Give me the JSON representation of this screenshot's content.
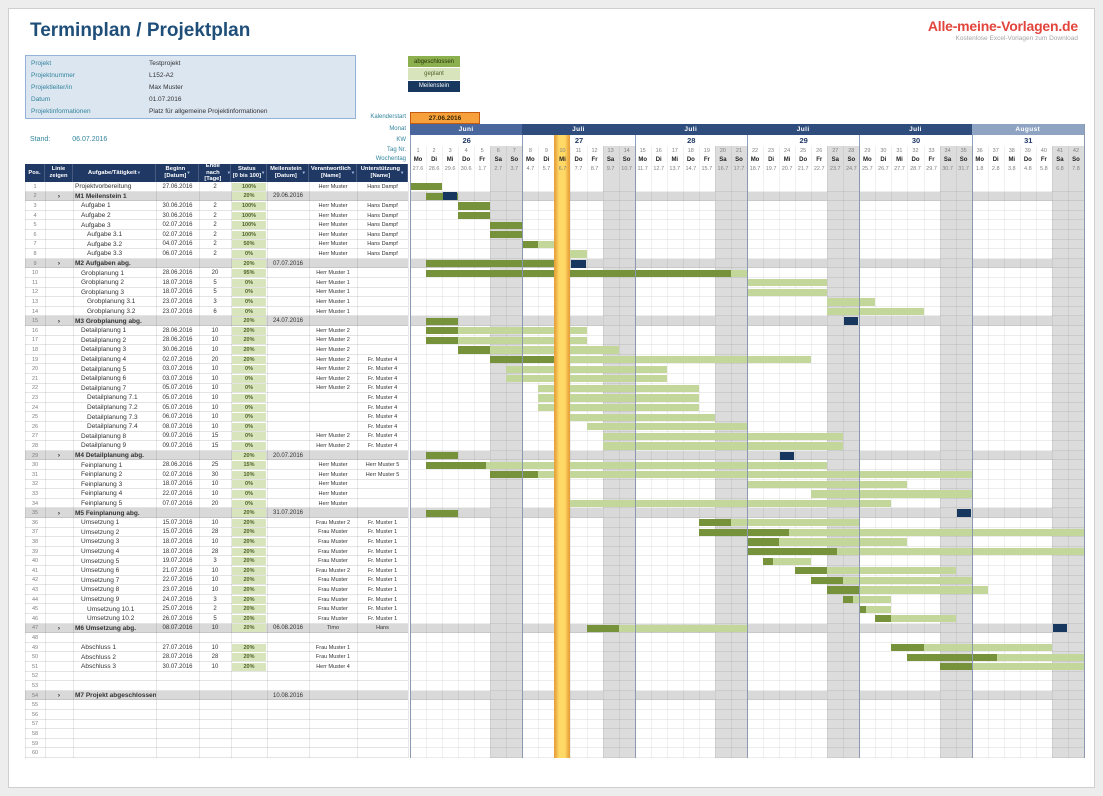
{
  "page": {
    "title": "Terminplan / Projektplan",
    "stand_label": "Stand:",
    "stand_value": "06.07.2016"
  },
  "logo": {
    "brand": "Alle-meine-Vorlagen.de",
    "tagline": "Kostenlose Excel-Vorlagen zum Download"
  },
  "project_info": {
    "rows": [
      {
        "label": "Projekt",
        "value": "Testprojekt"
      },
      {
        "label": "Projektnummer",
        "value": "L152-A2"
      },
      {
        "label": "Projektleiter/in",
        "value": "Max Muster"
      },
      {
        "label": "Datum",
        "value": "01.07.2016"
      },
      {
        "label": "Projektinformationen",
        "value": "Platz für allgemeine Projektinformationen"
      }
    ]
  },
  "legend": [
    {
      "label": "abgeschlossen",
      "color": "#8DB04E",
      "text": "#25330A"
    },
    {
      "label": "geplant",
      "color": "#D7E4BC",
      "text": "#4F6228"
    },
    {
      "label": "Meilenstein",
      "color": "#17375E",
      "text": "#FFFFFF"
    }
  ],
  "calendar": {
    "start_label": "Kalenderstart",
    "start_value": "27.06.2016",
    "row_labels": {
      "monat": "Monat",
      "kw": "KW",
      "tag": "Tag Nr.",
      "wochentag": "Wochentag"
    },
    "weeks": [
      {
        "month": "Juni",
        "kw": "26",
        "color": "#4A679D"
      },
      {
        "month": "Juli",
        "kw": "27",
        "color": "#2E4C7C"
      },
      {
        "month": "Juli",
        "kw": "28",
        "color": "#2E4C7C"
      },
      {
        "month": "Juli",
        "kw": "29",
        "color": "#2E4C7C"
      },
      {
        "month": "Juli",
        "kw": "30",
        "color": "#2E4C7C"
      },
      {
        "month": "August",
        "kw": "31",
        "color": "#8FA3C2"
      }
    ],
    "weekdays": [
      "Mo",
      "Di",
      "Mi",
      "Do",
      "Fr",
      "Sa",
      "So"
    ],
    "day_numbers": [
      1,
      2,
      3,
      4,
      5,
      6,
      7,
      8,
      9,
      10,
      11,
      12,
      13,
      14,
      15,
      16,
      17,
      18,
      19,
      20,
      21,
      22,
      23,
      24,
      25,
      26,
      27,
      28,
      29,
      30,
      31,
      32,
      33,
      34,
      35,
      36,
      37,
      38,
      39,
      40,
      41,
      42
    ],
    "dates": [
      "27.6",
      "28.6",
      "29.6",
      "30.6",
      "1.7",
      "2.7",
      "3.7",
      "4.7",
      "5.7",
      "6.7",
      "7.7",
      "8.7",
      "9.7",
      "10.7",
      "11.7",
      "12.7",
      "13.7",
      "14.7",
      "15.7",
      "16.7",
      "17.7",
      "18.7",
      "19.7",
      "20.7",
      "21.7",
      "22.7",
      "23.7",
      "24.7",
      "25.7",
      "26.7",
      "27.7",
      "28.7",
      "29.7",
      "30.7",
      "31.7",
      "1.8",
      "2.8",
      "3.8",
      "4.8",
      "5.8",
      "6.8",
      "7.8"
    ],
    "today_day_index": 10
  },
  "table": {
    "line_symbol": "›",
    "sort_icon": "▾",
    "headers": [
      {
        "line1": "Pos.",
        "line2": ""
      },
      {
        "line1": "Linie",
        "line2": "zeigen"
      },
      {
        "line1": "Aufgabe/Tätigkeit",
        "line2": ""
      },
      {
        "line1": "Beginn",
        "line2": "[Datum]"
      },
      {
        "line1": "Ende nach",
        "line2": "[Tage]"
      },
      {
        "line1": "Status",
        "line2": "[0 bis 100]"
      },
      {
        "line1": "Meilenstein",
        "line2": "[Datum]"
      },
      {
        "line1": "Verantwortlich",
        "line2": "[Name]"
      },
      {
        "line1": "Unterstützung",
        "line2": "[Name]"
      }
    ],
    "rows": [
      {
        "pos": 1,
        "type": "task",
        "indent": 0,
        "name": "Projektvorbereitung",
        "start": "27.06.2016",
        "days": "2",
        "status": "100%",
        "resp": "Herr Muster",
        "support": "Hans Dampf"
      },
      {
        "pos": 2,
        "type": "milestone",
        "indent": 0,
        "name": "M1 Meilenstein 1",
        "status": "20%",
        "milestone": "29.06.2016",
        "bar": {
          "start": "28.06.2016",
          "days": 2,
          "status": 100
        }
      },
      {
        "pos": 3,
        "type": "task",
        "indent": 1,
        "name": "Aufgabe 1",
        "start": "30.06.2016",
        "days": "2",
        "status": "100%",
        "resp": "Herr Muster",
        "support": "Hans Dampf"
      },
      {
        "pos": 4,
        "type": "task",
        "indent": 1,
        "name": "Aufgabe 2",
        "start": "30.06.2016",
        "days": "2",
        "status": "100%",
        "resp": "Herr Muster",
        "support": "Hans Dampf"
      },
      {
        "pos": 5,
        "type": "task",
        "indent": 1,
        "name": "Aufgabe 3",
        "start": "02.07.2016",
        "days": "2",
        "status": "100%",
        "resp": "Herr Muster",
        "support": "Hans Dampf"
      },
      {
        "pos": 6,
        "type": "task",
        "indent": 2,
        "name": "Aufgabe 3.1",
        "start": "02.07.2016",
        "days": "2",
        "status": "100%",
        "resp": "Herr Muster",
        "support": "Hans Dampf"
      },
      {
        "pos": 7,
        "type": "task",
        "indent": 2,
        "name": "Aufgabe 3.2",
        "start": "04.07.2016",
        "days": "2",
        "status": "50%",
        "resp": "Herr Muster",
        "support": "Hans Dampf"
      },
      {
        "pos": 8,
        "type": "task",
        "indent": 2,
        "name": "Aufgabe 3.3",
        "start": "06.07.2016",
        "days": "2",
        "status": "0%",
        "resp": "Herr Muster",
        "support": "Hans Dampf"
      },
      {
        "pos": 9,
        "type": "milestone",
        "indent": 0,
        "name": "M2 Aufgaben abg.",
        "status": "20%",
        "milestone": "07.07.2016",
        "bar": {
          "start": "28.06.2016",
          "days": 9,
          "status": 100
        }
      },
      {
        "pos": 10,
        "type": "task",
        "indent": 1,
        "name": "Grobplanung 1",
        "start": "28.06.2016",
        "days": "20",
        "status": "95%",
        "resp": "Herr Muster 1"
      },
      {
        "pos": 11,
        "type": "task",
        "indent": 1,
        "name": "Grobplanung 2",
        "start": "18.07.2016",
        "days": "5",
        "status": "0%",
        "resp": "Herr Muster 1"
      },
      {
        "pos": 12,
        "type": "task",
        "indent": 1,
        "name": "Grobplanung 3",
        "start": "18.07.2016",
        "days": "5",
        "status": "0%",
        "resp": "Herr Muster 1"
      },
      {
        "pos": 13,
        "type": "task",
        "indent": 2,
        "name": "Grobplanung 3.1",
        "start": "23.07.2016",
        "days": "3",
        "status": "0%",
        "resp": "Herr Muster 1"
      },
      {
        "pos": 14,
        "type": "task",
        "indent": 2,
        "name": "Grobplanung 3.2",
        "start": "23.07.2016",
        "days": "6",
        "status": "0%",
        "resp": "Herr Muster 1"
      },
      {
        "pos": 15,
        "type": "milestone",
        "indent": 0,
        "name": "M3 Grobplanung abg.",
        "status": "20%",
        "milestone": "24.07.2016",
        "bar": {
          "start": "28.06.2016",
          "days": 2,
          "status": 100
        }
      },
      {
        "pos": 16,
        "type": "task",
        "indent": 1,
        "name": "Detailplanung 1",
        "start": "28.06.2016",
        "days": "10",
        "status": "20%",
        "resp": "Herr Muster 2"
      },
      {
        "pos": 17,
        "type": "task",
        "indent": 1,
        "name": "Detailplanung 2",
        "start": "28.06.2016",
        "days": "10",
        "status": "20%",
        "resp": "Herr Muster 2"
      },
      {
        "pos": 18,
        "type": "task",
        "indent": 1,
        "name": "Detailplanung 3",
        "start": "30.06.2016",
        "days": "10",
        "status": "20%",
        "resp": "Herr Muster 2"
      },
      {
        "pos": 19,
        "type": "task",
        "indent": 1,
        "name": "Detailplanung 4",
        "start": "02.07.2016",
        "days": "20",
        "status": "20%",
        "resp": "Herr Muster 2",
        "support": "Fr. Muster 4"
      },
      {
        "pos": 20,
        "type": "task",
        "indent": 1,
        "name": "Detailplanung 5",
        "start": "03.07.2016",
        "days": "10",
        "status": "0%",
        "resp": "Herr Muster 2",
        "support": "Fr. Muster 4"
      },
      {
        "pos": 21,
        "type": "task",
        "indent": 1,
        "name": "Detailplanung 6",
        "start": "03.07.2016",
        "days": "10",
        "status": "0%",
        "resp": "Herr Muster 2",
        "support": "Fr. Muster 4"
      },
      {
        "pos": 22,
        "type": "task",
        "indent": 1,
        "name": "Detailplanung 7",
        "start": "05.07.2016",
        "days": "10",
        "status": "0%",
        "resp": "Herr Muster 2",
        "support": "Fr. Muster 4"
      },
      {
        "pos": 23,
        "type": "task",
        "indent": 2,
        "name": "Detailplanung 7.1",
        "start": "05.07.2016",
        "days": "10",
        "status": "0%",
        "support": "Fr. Muster 4"
      },
      {
        "pos": 24,
        "type": "task",
        "indent": 2,
        "name": "Detailplanung 7.2",
        "start": "05.07.2016",
        "days": "10",
        "status": "0%",
        "support": "Fr. Muster 4"
      },
      {
        "pos": 25,
        "type": "task",
        "indent": 2,
        "name": "Detailplanung 7.3",
        "start": "06.07.2016",
        "days": "10",
        "status": "0%",
        "support": "Fr. Muster 4"
      },
      {
        "pos": 26,
        "type": "task",
        "indent": 2,
        "name": "Detailplanung 7.4",
        "start": "08.07.2016",
        "days": "10",
        "status": "0%",
        "support": "Fr. Muster 4"
      },
      {
        "pos": 27,
        "type": "task",
        "indent": 1,
        "name": "Detailplanung 8",
        "start": "09.07.2016",
        "days": "15",
        "status": "0%",
        "resp": "Herr Muster 2",
        "support": "Fr. Muster 4"
      },
      {
        "pos": 28,
        "type": "task",
        "indent": 1,
        "name": "Detailplanung 9",
        "start": "09.07.2016",
        "days": "15",
        "status": "0%",
        "resp": "Herr Muster 2",
        "support": "Fr. Muster 4"
      },
      {
        "pos": 29,
        "type": "milestone",
        "indent": 0,
        "name": "M4 Detailplanung abg.",
        "status": "20%",
        "milestone": "20.07.2016",
        "bar": {
          "start": "28.06.2016",
          "days": 2,
          "status": 100
        }
      },
      {
        "pos": 30,
        "type": "task",
        "indent": 1,
        "name": "Feinplanung 1",
        "start": "28.06.2016",
        "days": "25",
        "status": "15%",
        "resp": "Herr Muster",
        "support": "Herr Muster 5"
      },
      {
        "pos": 31,
        "type": "task",
        "indent": 1,
        "name": "Feinplanung 2",
        "start": "02.07.2016",
        "days": "30",
        "status": "10%",
        "resp": "Herr Muster",
        "support": "Herr Muster 5"
      },
      {
        "pos": 32,
        "type": "task",
        "indent": 1,
        "name": "Feinplanung 3",
        "start": "18.07.2016",
        "days": "10",
        "status": "0%",
        "resp": "Herr Muster"
      },
      {
        "pos": 33,
        "type": "task",
        "indent": 1,
        "name": "Feinplanung 4",
        "start": "22.07.2016",
        "days": "10",
        "status": "0%",
        "resp": "Herr Muster"
      },
      {
        "pos": 34,
        "type": "task",
        "indent": 1,
        "name": "Feinplanung 5",
        "start": "07.07.2016",
        "days": "20",
        "status": "0%",
        "resp": "Herr Muster"
      },
      {
        "pos": 35,
        "type": "milestone",
        "indent": 0,
        "name": "M5 Feinplanung abg.",
        "status": "20%",
        "milestone": "31.07.2016",
        "bar": {
          "start": "28.06.2016",
          "days": 2,
          "status": 100
        }
      },
      {
        "pos": 36,
        "type": "task",
        "indent": 1,
        "name": "Umsetzung 1",
        "start": "15.07.2016",
        "days": "10",
        "status": "20%",
        "resp": "Frau Muster 2",
        "support": "Fr. Muster 1"
      },
      {
        "pos": 37,
        "type": "task",
        "indent": 1,
        "name": "Umsetzung 2",
        "start": "15.07.2016",
        "days": "28",
        "status": "20%",
        "resp": "Frau Muster",
        "support": "Fr. Muster 1"
      },
      {
        "pos": 38,
        "type": "task",
        "indent": 1,
        "name": "Umsetzung 3",
        "start": "18.07.2016",
        "days": "10",
        "status": "20%",
        "resp": "Frau Muster",
        "support": "Fr. Muster 1"
      },
      {
        "pos": 39,
        "type": "task",
        "indent": 1,
        "name": "Umsetzung 4",
        "start": "18.07.2016",
        "days": "28",
        "status": "20%",
        "resp": "Frau Muster",
        "support": "Fr. Muster 1"
      },
      {
        "pos": 40,
        "type": "task",
        "indent": 1,
        "name": "Umsetzung 5",
        "start": "19.07.2016",
        "days": "3",
        "status": "20%",
        "resp": "Frau Muster",
        "support": "Fr. Muster 1"
      },
      {
        "pos": 41,
        "type": "task",
        "indent": 1,
        "name": "Umsetzung 6",
        "start": "21.07.2016",
        "days": "10",
        "status": "20%",
        "resp": "Frau Muster 2",
        "support": "Fr. Muster 1"
      },
      {
        "pos": 42,
        "type": "task",
        "indent": 1,
        "name": "Umsetzung 7",
        "start": "22.07.2016",
        "days": "10",
        "status": "20%",
        "resp": "Frau Muster",
        "support": "Fr. Muster 1"
      },
      {
        "pos": 43,
        "type": "task",
        "indent": 1,
        "name": "Umsetzung 8",
        "start": "23.07.2016",
        "days": "10",
        "status": "20%",
        "resp": "Frau Muster",
        "support": "Fr. Muster 1"
      },
      {
        "pos": 44,
        "type": "task",
        "indent": 1,
        "name": "Umsetzung 9",
        "start": "24.07.2016",
        "days": "3",
        "status": "20%",
        "resp": "Frau Muster",
        "support": "Fr. Muster 1"
      },
      {
        "pos": 45,
        "type": "task",
        "indent": 2,
        "name": "Umsetzung 10.1",
        "start": "25.07.2016",
        "days": "2",
        "status": "20%",
        "resp": "Frau Muster",
        "support": "Fr. Muster 1"
      },
      {
        "pos": 46,
        "type": "task",
        "indent": 2,
        "name": "Umsetzung 10.2",
        "start": "26.07.2016",
        "days": "5",
        "status": "20%",
        "resp": "Frau Muster",
        "support": "Fr. Muster 1"
      },
      {
        "pos": 47,
        "type": "milestone",
        "indent": 0,
        "name": "M6 Umsetzung abg.",
        "start": "08.07.2016",
        "days": "10",
        "status": "20%",
        "milestone": "06.08.2016",
        "resp": "Timo",
        "support": "Hans"
      },
      {
        "pos": 48,
        "type": "empty"
      },
      {
        "pos": 49,
        "type": "task",
        "indent": 1,
        "name": "Abschluss 1",
        "start": "27.07.2016",
        "days": "10",
        "status": "20%",
        "resp": "Frau Muster 1"
      },
      {
        "pos": 50,
        "type": "task",
        "indent": 1,
        "name": "Abschluss 2",
        "start": "28.07.2016",
        "days": "28",
        "status": "20%",
        "resp": "Frau Muster 1"
      },
      {
        "pos": 51,
        "type": "task",
        "indent": 1,
        "name": "Abschluss 3",
        "start": "30.07.2016",
        "days": "10",
        "status": "20%",
        "resp": "Herr Muster 4"
      },
      {
        "pos": 52,
        "type": "empty"
      },
      {
        "pos": 53,
        "type": "empty"
      },
      {
        "pos": 54,
        "type": "milestone",
        "indent": 0,
        "name": "M7 Projekt abgeschlossen",
        "milestone": "10.08.2016"
      },
      {
        "pos": 55,
        "type": "empty"
      },
      {
        "pos": 56,
        "type": "empty"
      },
      {
        "pos": 57,
        "type": "empty"
      },
      {
        "pos": 58,
        "type": "empty"
      },
      {
        "pos": 59,
        "type": "empty"
      },
      {
        "pos": 60,
        "type": "empty"
      }
    ]
  },
  "colors": {
    "title": "#1F4E79",
    "teal": "#31849B",
    "brand_red": "#E2453C",
    "header_navy": "#1F3864",
    "milestone_row": "#D9D9D9",
    "weekend": "#DCDCDC",
    "done": "#76933C",
    "planned": "#C4D79B",
    "marker": "#17375E",
    "today_fill": "#FFD966",
    "today_edge": "#E8A33D",
    "kalstart_bg": "#F6A13C",
    "kalstart_border": "#C55A11",
    "status_bg": "#D8E4BC",
    "status_text": "#4F6228"
  }
}
